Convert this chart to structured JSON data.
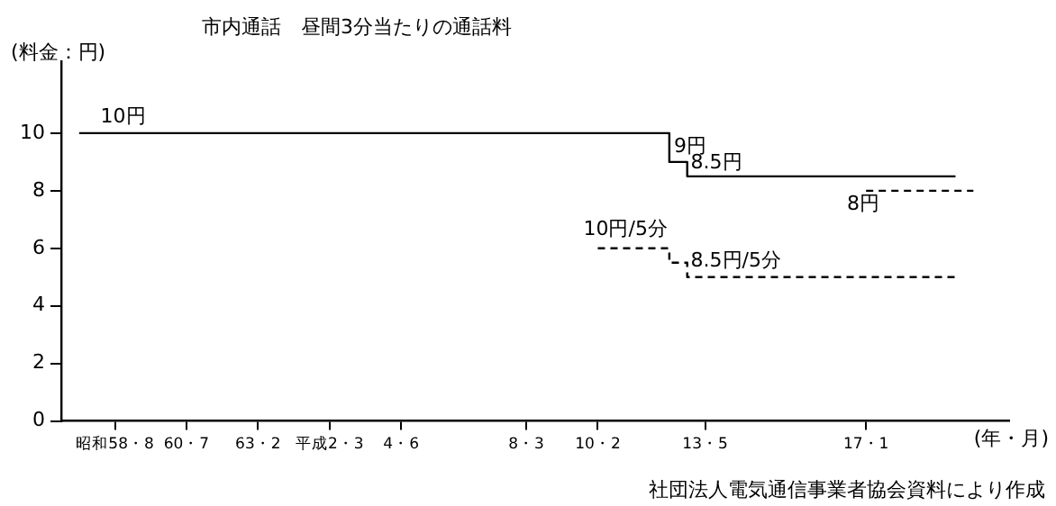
{
  "chart_data": {
    "type": "step",
    "title": "市内通話　昼間3分当たりの通話料",
    "ylabel": "(料金：円)",
    "xlabel": "(年・月)",
    "categories": [
      null,
      null,
      null,
      "昭和58・8",
      null,
      null,
      null,
      "60・7",
      null,
      null,
      null,
      "63・2",
      null,
      null,
      null,
      "平成2・3",
      null,
      null,
      null,
      "4・6",
      null,
      null,
      null,
      null,
      null,
      null,
      "8・3",
      null,
      null,
      null,
      "10・2",
      null,
      null,
      null,
      null,
      null,
      "13・5",
      null,
      null,
      null,
      null,
      null,
      null,
      null,
      null,
      "17・1",
      null,
      null,
      null,
      null,
      null,
      null,
      null,
      null
    ],
    "series": [
      {
        "color": "#000000",
        "line_style": "solid",
        "values": [
          null,
          10,
          10,
          10,
          10,
          10,
          10,
          10,
          10,
          10,
          10,
          10,
          10,
          10,
          10,
          10,
          10,
          10,
          10,
          10,
          10,
          10,
          10,
          10,
          10,
          10,
          10,
          10,
          10,
          10,
          10,
          10,
          10,
          10,
          10,
          9,
          8.5,
          8.5,
          8.5,
          8.5,
          8.5,
          8.5,
          8.5,
          8.5,
          8.5,
          8.5,
          8.5,
          8.5,
          8.5,
          8.5,
          8.5,
          null,
          null,
          null
        ]
      },
      {
        "color": "#000000",
        "line_style": "dashed",
        "values": [
          null,
          null,
          null,
          null,
          null,
          null,
          null,
          null,
          null,
          null,
          null,
          null,
          null,
          null,
          null,
          null,
          null,
          null,
          null,
          null,
          null,
          null,
          null,
          null,
          null,
          null,
          null,
          null,
          null,
          null,
          6,
          6,
          6,
          6,
          6,
          5.5,
          5,
          5,
          5,
          5,
          5,
          5,
          5,
          5,
          5,
          5,
          5,
          5,
          5,
          5,
          5,
          null,
          null,
          null
        ]
      },
      {
        "color": "#000000",
        "line_style": "dashed",
        "values": [
          null,
          null,
          null,
          null,
          null,
          null,
          null,
          null,
          null,
          null,
          null,
          null,
          null,
          null,
          null,
          null,
          null,
          null,
          null,
          null,
          null,
          null,
          null,
          null,
          null,
          null,
          null,
          null,
          null,
          null,
          null,
          null,
          null,
          null,
          null,
          null,
          null,
          null,
          null,
          null,
          null,
          null,
          null,
          null,
          null,
          8,
          8,
          8,
          8,
          8,
          8,
          8,
          null,
          null
        ]
      }
    ],
    "ylim": [
      0,
      12.5
    ],
    "yticks": [
      0,
      2,
      4,
      6,
      8,
      10
    ],
    "grid": false,
    "legend": false,
    "marker": "none",
    "annotations": [
      {
        "text": "10円",
        "x": "昭和58・8",
        "y": 10.2
      },
      "9円",
      {
        "text": "8.5円",
        "x": "13・5",
        "y": 8.6
      },
      "8円",
      {
        "text": "10円/5分",
        "x": "10・2",
        "y": 6.3
      },
      {
        "text": "8.5円/5分",
        "x": "13・5",
        "y": 5.2
      },
      "社団法人電気通信事業者協会資料により作成"
    ]
  }
}
